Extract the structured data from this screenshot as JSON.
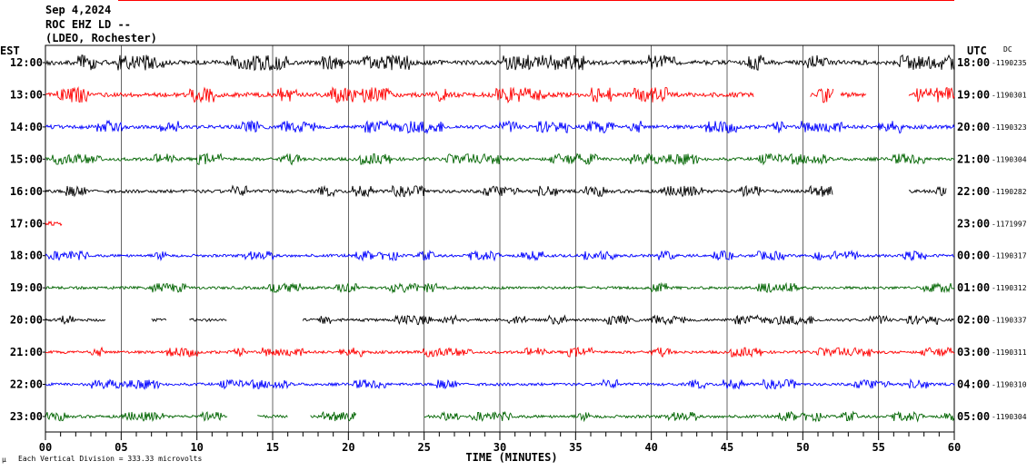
{
  "header": {
    "date": "Sep 4,2024",
    "station": "ROC EHZ LD --",
    "location": "(LDEO, Rochester)",
    "left_zone": "EST",
    "right_zone": "UTC",
    "dc_label": "DC"
  },
  "chart_data": {
    "type": "line",
    "title": "",
    "xlabel": "TIME (MINUTES)",
    "ylabel": "",
    "xlim": [
      0,
      60
    ],
    "x_ticks": [
      "00",
      "05",
      "10",
      "15",
      "20",
      "25",
      "30",
      "35",
      "40",
      "45",
      "50",
      "55",
      "60"
    ],
    "grid": true,
    "footer_note": "Each Vertical Division = 333.33 microvolts",
    "trace_colors": [
      "#000000",
      "#ff0000",
      "#0000ff",
      "#006400"
    ],
    "rows": [
      {
        "est": "12:00",
        "utc": "18:00",
        "dc": "-1190235",
        "color": "#000000",
        "amp": 1.0,
        "segments": [
          [
            0,
            60
          ]
        ]
      },
      {
        "est": "13:00",
        "utc": "19:00",
        "dc": "-1190301",
        "color": "#ff0000",
        "amp": 1.0,
        "segments": [
          [
            0,
            46.8
          ],
          [
            50.5,
            52
          ],
          [
            52.5,
            54.2
          ],
          [
            57,
            60
          ]
        ]
      },
      {
        "est": "14:00",
        "utc": "20:00",
        "dc": "-1190323",
        "color": "#0000ff",
        "amp": 0.8,
        "segments": [
          [
            0,
            60
          ]
        ]
      },
      {
        "est": "15:00",
        "utc": "21:00",
        "dc": "-1190304",
        "color": "#006400",
        "amp": 0.7,
        "segments": [
          [
            0,
            60
          ]
        ]
      },
      {
        "est": "16:00",
        "utc": "22:00",
        "dc": "-1190282",
        "color": "#000000",
        "amp": 0.7,
        "segments": [
          [
            0,
            52
          ],
          [
            57,
            59.5
          ]
        ]
      },
      {
        "est": "17:00",
        "utc": "23:00",
        "dc": "-1171997",
        "color": "#ff0000",
        "amp": 1.2,
        "segments": [
          [
            0,
            1.1
          ]
        ]
      },
      {
        "est": "18:00",
        "utc": "00:00",
        "dc": "-1190317",
        "color": "#0000ff",
        "amp": 0.6,
        "segments": [
          [
            0,
            60
          ]
        ]
      },
      {
        "est": "19:00",
        "utc": "01:00",
        "dc": "-1190312",
        "color": "#006400",
        "amp": 0.6,
        "segments": [
          [
            0,
            60
          ]
        ]
      },
      {
        "est": "20:00",
        "utc": "02:00",
        "dc": "-1190337",
        "color": "#000000",
        "amp": 0.6,
        "segments": [
          [
            0,
            4
          ],
          [
            7,
            8
          ],
          [
            9.5,
            12
          ],
          [
            17,
            60
          ]
        ]
      },
      {
        "est": "21:00",
        "utc": "03:00",
        "dc": "-1190311",
        "color": "#ff0000",
        "amp": 0.6,
        "segments": [
          [
            0,
            60
          ]
        ]
      },
      {
        "est": "22:00",
        "utc": "04:00",
        "dc": "-1190310",
        "color": "#0000ff",
        "amp": 0.6,
        "segments": [
          [
            0,
            60
          ]
        ]
      },
      {
        "est": "23:00",
        "utc": "05:00",
        "dc": "-1190304",
        "color": "#006400",
        "amp": 0.6,
        "segments": [
          [
            0,
            12
          ],
          [
            14,
            16
          ],
          [
            17.5,
            20.5
          ],
          [
            25,
            60
          ]
        ]
      }
    ]
  }
}
